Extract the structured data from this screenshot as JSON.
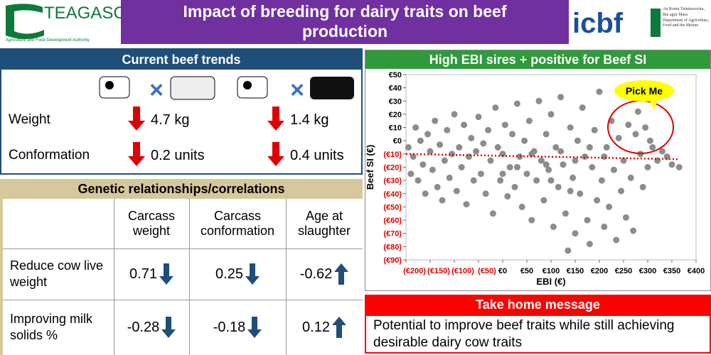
{
  "header": {
    "logo_left": "TEAGASC",
    "logo_left_sub": "Agriculture and Food Development Authority",
    "title": "Impact of breeding for dairy traits on beef production",
    "logo_right": "icbf",
    "logo_right_sub": "An Roinn Talmhaíochta, Bia agus Mara",
    "logo_right_sub2": "Department of Agriculture, Food and the Marine"
  },
  "trends": {
    "title": "Current beef trends",
    "rows": [
      {
        "label": "Weight",
        "values": [
          "4.7 kg",
          "1.4 kg"
        ]
      },
      {
        "label": "Conformation",
        "values": [
          "0.2 units",
          "0.4 units"
        ]
      }
    ]
  },
  "correlations": {
    "title": "Genetic relationships/correlations",
    "columns": [
      "Carcass weight",
      "Carcass conformation",
      "Age at slaughter"
    ],
    "rows": [
      {
        "label": "Reduce cow live weight",
        "values": [
          0.71,
          0.25,
          -0.62
        ]
      },
      {
        "label": "Improving milk solids %",
        "values": [
          -0.28,
          -0.18,
          0.12
        ]
      }
    ]
  },
  "chart_data": {
    "type": "scatter",
    "title": "High EBI sires + positive for Beef SI",
    "xlabel": "EBI (€)",
    "ylabel": "Beef SI (€)",
    "annotation": "Pick Me",
    "color": "#8c8c8c",
    "negative_label_color": "#e00000",
    "xlim": [
      -200,
      400
    ],
    "xticks": [
      {
        "value": -200,
        "label": "(€200)"
      },
      {
        "value": -150,
        "label": "(€150)"
      },
      {
        "value": -100,
        "label": "(€100)"
      },
      {
        "value": -50,
        "label": "(€50)"
      },
      {
        "value": 0,
        "label": "€0"
      },
      {
        "value": 50,
        "label": "€50"
      },
      {
        "value": 100,
        "label": "€100"
      },
      {
        "value": 150,
        "label": "€150"
      },
      {
        "value": 200,
        "label": "€200"
      },
      {
        "value": 250,
        "label": "€250"
      },
      {
        "value": 300,
        "label": "€300"
      },
      {
        "value": 350,
        "label": "€350"
      },
      {
        "value": 400,
        "label": "€400"
      }
    ],
    "ylim": [
      -90,
      50
    ],
    "yticks": [
      {
        "value": 50,
        "label": "€50"
      },
      {
        "value": 40,
        "label": "€40"
      },
      {
        "value": 30,
        "label": "€30"
      },
      {
        "value": 20,
        "label": "€20"
      },
      {
        "value": 10,
        "label": "€10"
      },
      {
        "value": 0,
        "label": "€0"
      },
      {
        "value": -10,
        "label": "(€10)"
      },
      {
        "value": -20,
        "label": "(€20)"
      },
      {
        "value": -30,
        "label": "(€30)"
      },
      {
        "value": -40,
        "label": "(€40)"
      },
      {
        "value": -50,
        "label": "(€50)"
      },
      {
        "value": -60,
        "label": "(€60)"
      },
      {
        "value": -70,
        "label": "(€70)"
      },
      {
        "value": -80,
        "label": "(€80)"
      },
      {
        "value": -90,
        "label": "(€90)"
      }
    ],
    "trend_line": {
      "color": "#e00000",
      "x": [
        -200,
        365
      ],
      "y": [
        -10,
        -14
      ]
    },
    "x": [
      -195,
      -190,
      -185,
      -180,
      -175,
      -170,
      -165,
      -160,
      -155,
      -150,
      -145,
      -140,
      -135,
      -130,
      -125,
      -120,
      -115,
      -110,
      -105,
      -100,
      -95,
      -90,
      -85,
      -80,
      -75,
      -70,
      -65,
      -60,
      -55,
      -50,
      -45,
      -40,
      -35,
      -30,
      -25,
      -20,
      -15,
      -10,
      -5,
      0,
      5,
      10,
      15,
      20,
      25,
      30,
      35,
      40,
      45,
      50,
      55,
      60,
      65,
      70,
      75,
      80,
      85,
      90,
      95,
      100,
      105,
      110,
      115,
      120,
      125,
      130,
      135,
      140,
      145,
      150,
      155,
      160,
      165,
      170,
      175,
      180,
      185,
      190,
      195,
      200,
      205,
      210,
      215,
      220,
      225,
      230,
      235,
      240,
      245,
      250,
      255,
      260,
      265,
      270,
      275,
      280,
      285,
      290,
      295,
      300,
      305,
      310,
      320,
      330,
      340,
      350,
      365,
      60,
      90,
      120,
      150,
      180,
      30,
      0,
      210,
      100,
      140
    ],
    "y": [
      -5,
      -25,
      -12,
      10,
      -30,
      0,
      -18,
      -40,
      5,
      -8,
      -22,
      15,
      -35,
      -3,
      -45,
      -15,
      8,
      -28,
      -10,
      20,
      -38,
      -5,
      -20,
      12,
      -48,
      -12,
      2,
      -30,
      -8,
      18,
      -25,
      -2,
      -40,
      8,
      -15,
      -55,
      25,
      -5,
      -30,
      -10,
      12,
      -42,
      -20,
      5,
      -35,
      28,
      -12,
      -50,
      0,
      -25,
      15,
      -60,
      -8,
      -30,
      30,
      -15,
      -45,
      5,
      -22,
      20,
      -65,
      -5,
      -35,
      33,
      -18,
      -55,
      -83,
      10,
      -28,
      -70,
      0,
      -40,
      25,
      -12,
      -60,
      -78,
      -20,
      8,
      -45,
      37,
      -30,
      -65,
      -5,
      -50,
      15,
      -22,
      -75,
      2,
      -38,
      -15,
      -58,
      12,
      -28,
      -68,
      5,
      22,
      -10,
      -35,
      10,
      -20,
      0,
      -5,
      -15,
      -8,
      -12,
      -18,
      -20,
      -10,
      -18,
      -8,
      -15,
      -5,
      -20,
      -25,
      -12,
      -30,
      -38
    ]
  },
  "message": {
    "title": "Take home message",
    "text": "Potential to improve beef traits while still achieving desirable dairy cow traits"
  }
}
